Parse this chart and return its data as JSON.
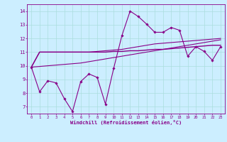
{
  "xlabel": "Windchill (Refroidissement éolien,°C)",
  "bg_color": "#cceeff",
  "grid_color": "#aadddd",
  "line_color": "#880088",
  "xlim": [
    -0.5,
    23.5
  ],
  "ylim": [
    6.5,
    14.5
  ],
  "xticks": [
    0,
    1,
    2,
    3,
    4,
    5,
    6,
    7,
    8,
    9,
    10,
    11,
    12,
    13,
    14,
    15,
    16,
    17,
    18,
    19,
    20,
    21,
    22,
    23
  ],
  "yticks": [
    7,
    8,
    9,
    10,
    11,
    12,
    13,
    14
  ],
  "line1_x": [
    0,
    1,
    2,
    3,
    4,
    5,
    6,
    7,
    8,
    9,
    10,
    11,
    12,
    13,
    14,
    15,
    16,
    17,
    18,
    19,
    20,
    21,
    22,
    23
  ],
  "line1_y": [
    9.9,
    8.1,
    8.9,
    8.75,
    7.6,
    6.65,
    8.85,
    9.4,
    9.15,
    7.2,
    9.8,
    12.2,
    14.0,
    13.6,
    13.05,
    12.45,
    12.45,
    12.8,
    12.6,
    10.7,
    11.4,
    11.05,
    10.4,
    11.4
  ],
  "line2_x": [
    0,
    1,
    2,
    3,
    4,
    5,
    6,
    7,
    8,
    9,
    10,
    11,
    12,
    13,
    14,
    15,
    16,
    17,
    18,
    19,
    20,
    21,
    22,
    23
  ],
  "line2_y": [
    9.9,
    11.0,
    11.0,
    11.0,
    11.0,
    11.0,
    11.0,
    11.0,
    11.0,
    11.0,
    11.05,
    11.05,
    11.1,
    11.1,
    11.15,
    11.2,
    11.2,
    11.25,
    11.3,
    11.35,
    11.4,
    11.45,
    11.5,
    11.5
  ],
  "line3_x": [
    0,
    1,
    2,
    3,
    4,
    5,
    6,
    7,
    8,
    9,
    10,
    11,
    12,
    13,
    14,
    15,
    16,
    17,
    18,
    19,
    20,
    21,
    22,
    23
  ],
  "line3_y": [
    9.9,
    11.0,
    11.0,
    11.0,
    11.0,
    11.0,
    11.0,
    11.0,
    11.05,
    11.1,
    11.15,
    11.2,
    11.3,
    11.4,
    11.5,
    11.6,
    11.65,
    11.7,
    11.75,
    11.8,
    11.85,
    11.9,
    11.95,
    12.0
  ],
  "line4_x": [
    0,
    1,
    2,
    3,
    4,
    5,
    6,
    7,
    8,
    9,
    10,
    11,
    12,
    13,
    14,
    15,
    16,
    17,
    18,
    19,
    20,
    21,
    22,
    23
  ],
  "line4_y": [
    9.9,
    9.95,
    10.0,
    10.05,
    10.1,
    10.15,
    10.2,
    10.3,
    10.4,
    10.5,
    10.6,
    10.7,
    10.8,
    10.9,
    11.0,
    11.1,
    11.2,
    11.3,
    11.4,
    11.5,
    11.6,
    11.7,
    11.8,
    11.9
  ]
}
